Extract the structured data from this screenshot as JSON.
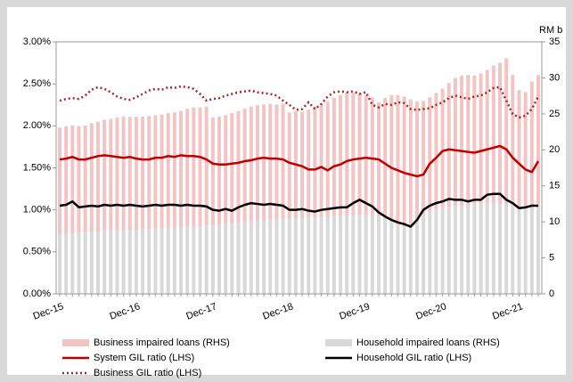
{
  "chart_data": {
    "type": "bar-line",
    "y2_label": "RM b",
    "categories": [
      "Dec-15",
      null,
      null,
      null,
      null,
      null,
      null,
      null,
      null,
      null,
      null,
      null,
      "Dec-16",
      null,
      null,
      null,
      null,
      null,
      null,
      null,
      null,
      null,
      null,
      null,
      "Dec-17",
      null,
      null,
      null,
      null,
      null,
      null,
      null,
      null,
      null,
      null,
      null,
      "Dec-18",
      null,
      null,
      null,
      null,
      null,
      null,
      null,
      null,
      null,
      null,
      null,
      "Dec-19",
      null,
      null,
      null,
      null,
      null,
      null,
      null,
      null,
      null,
      null,
      null,
      "Dec-20",
      null,
      null,
      null,
      null,
      null,
      null,
      null,
      null,
      null,
      null,
      null,
      "Dec-21",
      null,
      null,
      null
    ],
    "ylim": [
      0,
      3
    ],
    "yticks": [
      {
        "value": 0,
        "label": "0.00%"
      },
      {
        "value": 0.5,
        "label": "0.50%"
      },
      {
        "value": 1,
        "label": "1.00%"
      },
      {
        "value": 1.5,
        "label": "1.50%"
      },
      {
        "value": 2,
        "label": "2.00%"
      },
      {
        "value": 2.5,
        "label": "2.50%"
      },
      {
        "value": 3,
        "label": "3.00%"
      }
    ],
    "y2lim": [
      0,
      35
    ],
    "y2ticks": [
      0,
      5,
      10,
      15,
      20,
      25,
      30,
      35
    ],
    "series": [
      {
        "name": "Business impaired loans (RHS)",
        "mark": "bar",
        "axis": "y2",
        "color": "#f2c4c4",
        "values": [
          14.8,
          14.9,
          15.0,
          14.8,
          14.9,
          15.1,
          15.3,
          15.5,
          15.6,
          15.7,
          15.8,
          15.7,
          15.7,
          15.6,
          15.7,
          15.7,
          15.8,
          15.9,
          16.0,
          16.1,
          16.4,
          16.5,
          16.5,
          16.5,
          15.0,
          15.0,
          15.1,
          15.3,
          15.5,
          15.7,
          15.9,
          16.0,
          16.1,
          16.1,
          16.0,
          16.0,
          14.8,
          14.9,
          14.8,
          15.0,
          15.4,
          15.6,
          16.0,
          16.4,
          16.8,
          17.0,
          17.0,
          16.9,
          16.6,
          16.3,
          15.8,
          16.8,
          17.6,
          18.0,
          18.0,
          17.2,
          16.2,
          15.8,
          15.8,
          16.1,
          16.5,
          17.2,
          17.8,
          18.1,
          18.1,
          17.9,
          18.1,
          18.5,
          19.2,
          19.7,
          20.4,
          18.2,
          16.2,
          15.8,
          17.2,
          18.0
        ]
      },
      {
        "name": "Household impaired loans (RHS)",
        "mark": "bar",
        "axis": "y2",
        "color": "#d9d9d9",
        "values": [
          8.3,
          8.4,
          8.4,
          8.5,
          8.5,
          8.6,
          8.6,
          8.7,
          8.7,
          8.8,
          8.8,
          8.9,
          8.9,
          9.0,
          9.0,
          9.1,
          9.1,
          9.2,
          9.2,
          9.3,
          9.3,
          9.4,
          9.4,
          9.5,
          9.5,
          9.6,
          9.7,
          9.8,
          9.9,
          10.0,
          10.1,
          10.2,
          10.2,
          10.3,
          10.3,
          10.4,
          10.4,
          10.5,
          10.5,
          10.6,
          10.6,
          10.7,
          10.7,
          10.8,
          10.8,
          10.9,
          10.9,
          11.0,
          11.0,
          11.0,
          10.8,
          10.4,
          10.0,
          9.6,
          9.4,
          9.8,
          10.5,
          11.0,
          11.5,
          11.8,
          12.0,
          12.1,
          12.2,
          12.2,
          12.3,
          12.4,
          12.5,
          12.6,
          12.5,
          12.4,
          12.3,
          12.2,
          12.1,
          12.2,
          12.3,
          12.4
        ]
      },
      {
        "name": "System GIL ratio (LHS)",
        "mark": "line",
        "color": "#c00000",
        "dash": "none",
        "values": [
          1.6,
          1.61,
          1.63,
          1.6,
          1.6,
          1.62,
          1.64,
          1.65,
          1.64,
          1.63,
          1.62,
          1.63,
          1.61,
          1.6,
          1.6,
          1.62,
          1.62,
          1.64,
          1.63,
          1.65,
          1.64,
          1.64,
          1.63,
          1.6,
          1.55,
          1.54,
          1.54,
          1.55,
          1.56,
          1.58,
          1.59,
          1.61,
          1.62,
          1.61,
          1.61,
          1.6,
          1.56,
          1.54,
          1.52,
          1.48,
          1.48,
          1.51,
          1.47,
          1.52,
          1.54,
          1.58,
          1.6,
          1.61,
          1.62,
          1.61,
          1.6,
          1.55,
          1.5,
          1.47,
          1.44,
          1.42,
          1.4,
          1.42,
          1.55,
          1.62,
          1.7,
          1.72,
          1.71,
          1.7,
          1.69,
          1.68,
          1.7,
          1.72,
          1.74,
          1.76,
          1.72,
          1.62,
          1.55,
          1.48,
          1.45,
          1.58
        ]
      },
      {
        "name": "Household GIL ratio (LHS)",
        "mark": "line",
        "color": "#000000",
        "dash": "none",
        "values": [
          1.05,
          1.06,
          1.1,
          1.03,
          1.04,
          1.05,
          1.04,
          1.06,
          1.05,
          1.06,
          1.05,
          1.06,
          1.05,
          1.04,
          1.05,
          1.06,
          1.05,
          1.06,
          1.06,
          1.05,
          1.06,
          1.05,
          1.05,
          1.04,
          1.0,
          0.99,
          1.01,
          0.99,
          1.03,
          1.06,
          1.08,
          1.07,
          1.06,
          1.07,
          1.06,
          1.05,
          1.0,
          1.0,
          1.01,
          0.99,
          0.98,
          1.0,
          1.01,
          1.02,
          1.03,
          1.03,
          1.08,
          1.12,
          1.08,
          1.04,
          0.97,
          0.92,
          0.88,
          0.85,
          0.83,
          0.8,
          0.88,
          1.0,
          1.05,
          1.08,
          1.1,
          1.13,
          1.12,
          1.12,
          1.1,
          1.12,
          1.12,
          1.18,
          1.19,
          1.19,
          1.12,
          1.08,
          1.02,
          1.03,
          1.05,
          1.05
        ]
      },
      {
        "name": "Business GIL ratio (LHS)",
        "mark": "line",
        "color": "#a52a2a",
        "dash": "2 3",
        "values": [
          2.3,
          2.32,
          2.33,
          2.32,
          2.36,
          2.43,
          2.46,
          2.44,
          2.4,
          2.35,
          2.32,
          2.31,
          2.34,
          2.38,
          2.42,
          2.44,
          2.43,
          2.46,
          2.45,
          2.47,
          2.46,
          2.44,
          2.38,
          2.3,
          2.32,
          2.33,
          2.36,
          2.38,
          2.4,
          2.41,
          2.42,
          2.4,
          2.39,
          2.38,
          2.36,
          2.3,
          2.25,
          2.19,
          2.2,
          2.28,
          2.2,
          2.26,
          2.35,
          2.4,
          2.41,
          2.4,
          2.41,
          2.38,
          2.4,
          2.25,
          2.22,
          2.26,
          2.25,
          2.28,
          2.27,
          2.2,
          2.19,
          2.2,
          2.21,
          2.25,
          2.28,
          2.33,
          2.36,
          2.34,
          2.32,
          2.35,
          2.36,
          2.4,
          2.45,
          2.46,
          2.3,
          2.14,
          2.1,
          2.12,
          2.2,
          2.35
        ]
      }
    ]
  }
}
